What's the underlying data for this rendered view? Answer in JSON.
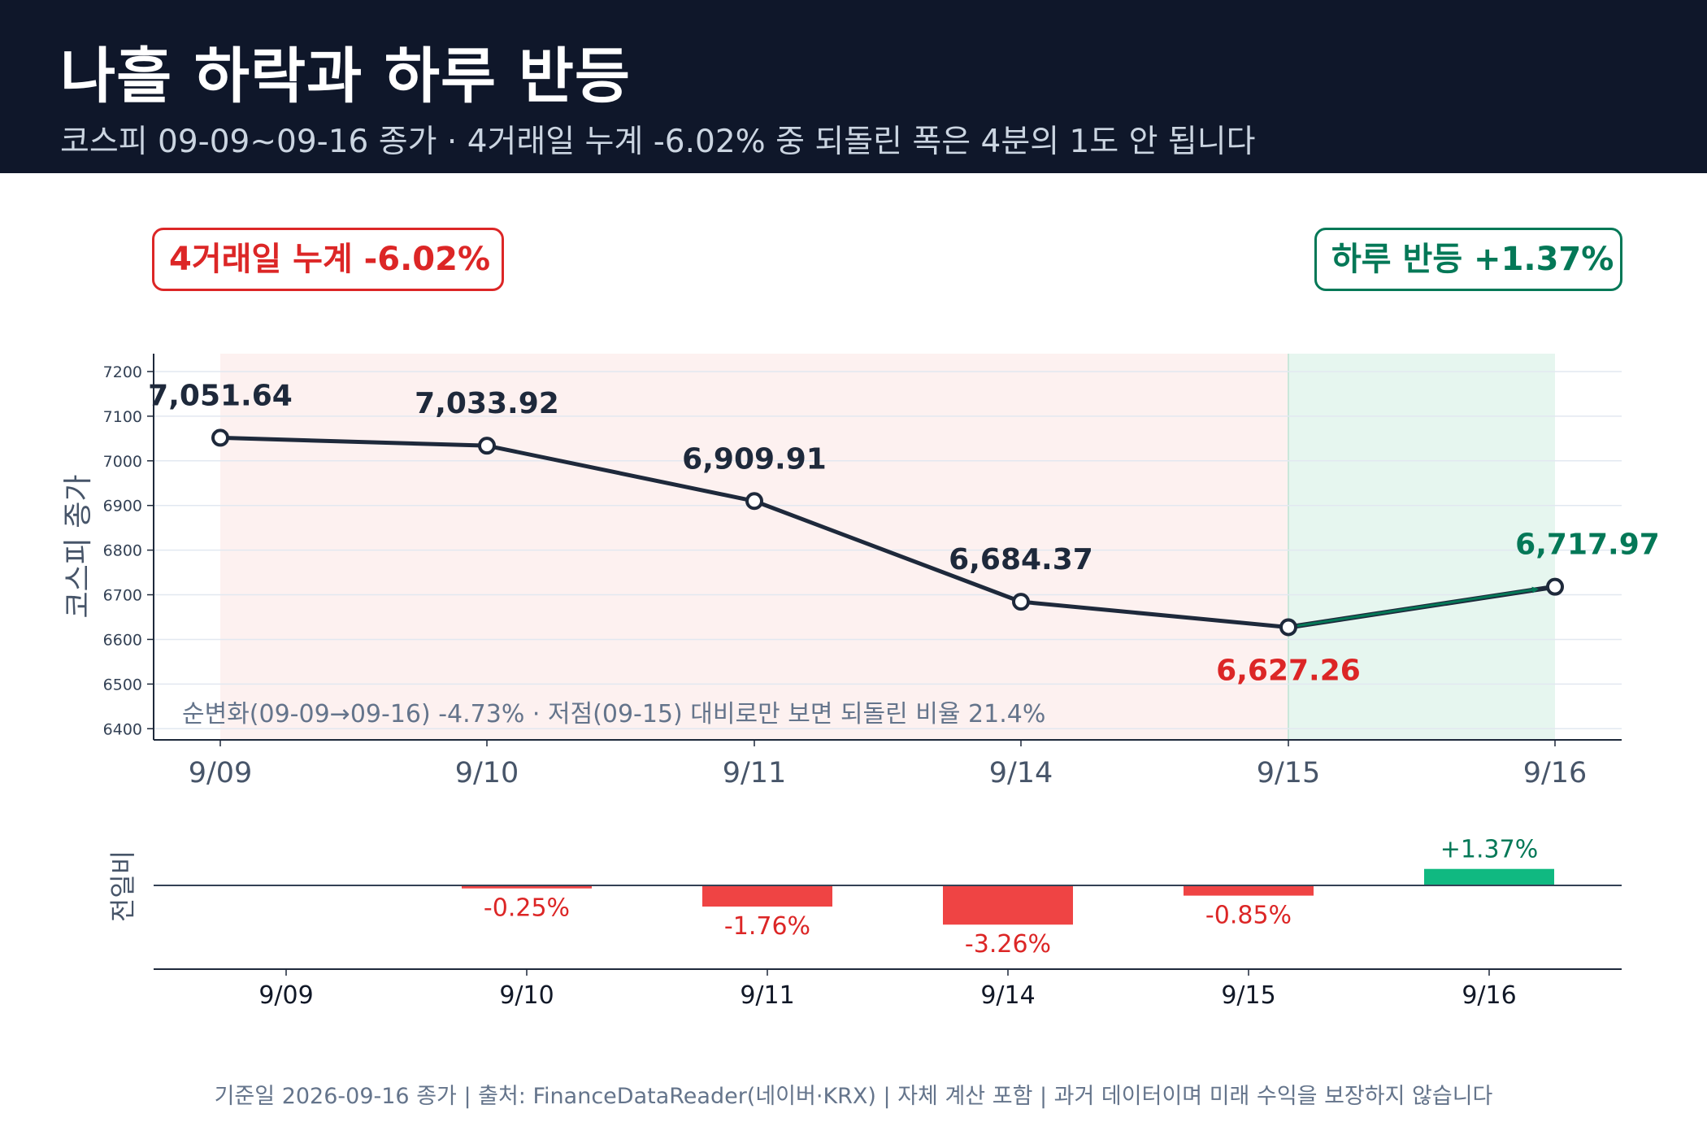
{
  "header": {
    "title": "나흘 하락과 하루 반등",
    "subtitle": "코스피 09-09~09-16 종가 · 4거래일 누계 -6.02% 중 되돌린 폭은 4분의 1도 안 됩니다"
  },
  "badges": {
    "decline": "4거래일 누계 -6.02%",
    "rebound": "하루 반등 +1.37%"
  },
  "annotation": "순변화(09-09→09-16) -4.73% · 저점(09-15) 대비로만 보면 되돌린 비율 21.4%",
  "footer": "기준일 2026-09-16 종가 | 출처: FinanceDataReader(네이버·KRX) | 자체 계산 포함 | 과거 데이터이며 미래 수익을 보장하지 않습니다",
  "colors": {
    "header_bg": "#0f172a",
    "line": "#1e293b",
    "down": "#dc2626",
    "down_bar": "#ef4444",
    "up": "#047857",
    "up_bar": "#10b981",
    "decline_region": "#fdf1f0",
    "rebound_region": "#e6f6ef"
  },
  "chart_data": [
    {
      "type": "line",
      "title": "",
      "ylabel": "코스피 종가",
      "xlabel": "",
      "categories": [
        "9/09",
        "9/10",
        "9/11",
        "9/14",
        "9/15",
        "9/16"
      ],
      "values": [
        7051.64,
        7033.92,
        6909.91,
        6684.37,
        6627.26,
        6717.97
      ],
      "value_labels": [
        "7,051.64",
        "7,033.92",
        "6,909.91",
        "6,684.37",
        "6,627.26",
        "6,717.97"
      ],
      "ylim": [
        6375,
        7240
      ],
      "yticks": [
        6400,
        6500,
        6600,
        6700,
        6800,
        6900,
        7000,
        7100,
        7200
      ],
      "grid": true,
      "shaded_regions": [
        {
          "from": "9/09",
          "to": "9/15",
          "meaning": "decline"
        },
        {
          "from": "9/15",
          "to": "9/16",
          "meaning": "rebound"
        }
      ]
    },
    {
      "type": "bar",
      "ylabel": "전일비",
      "categories": [
        "9/09",
        "9/10",
        "9/11",
        "9/14",
        "9/15",
        "9/16"
      ],
      "values": [
        0,
        -0.25,
        -1.76,
        -3.26,
        -0.85,
        1.37
      ],
      "value_labels": [
        "",
        "-0.25%",
        "-1.76%",
        "-3.26%",
        "-0.85%",
        "+1.37%"
      ]
    }
  ]
}
